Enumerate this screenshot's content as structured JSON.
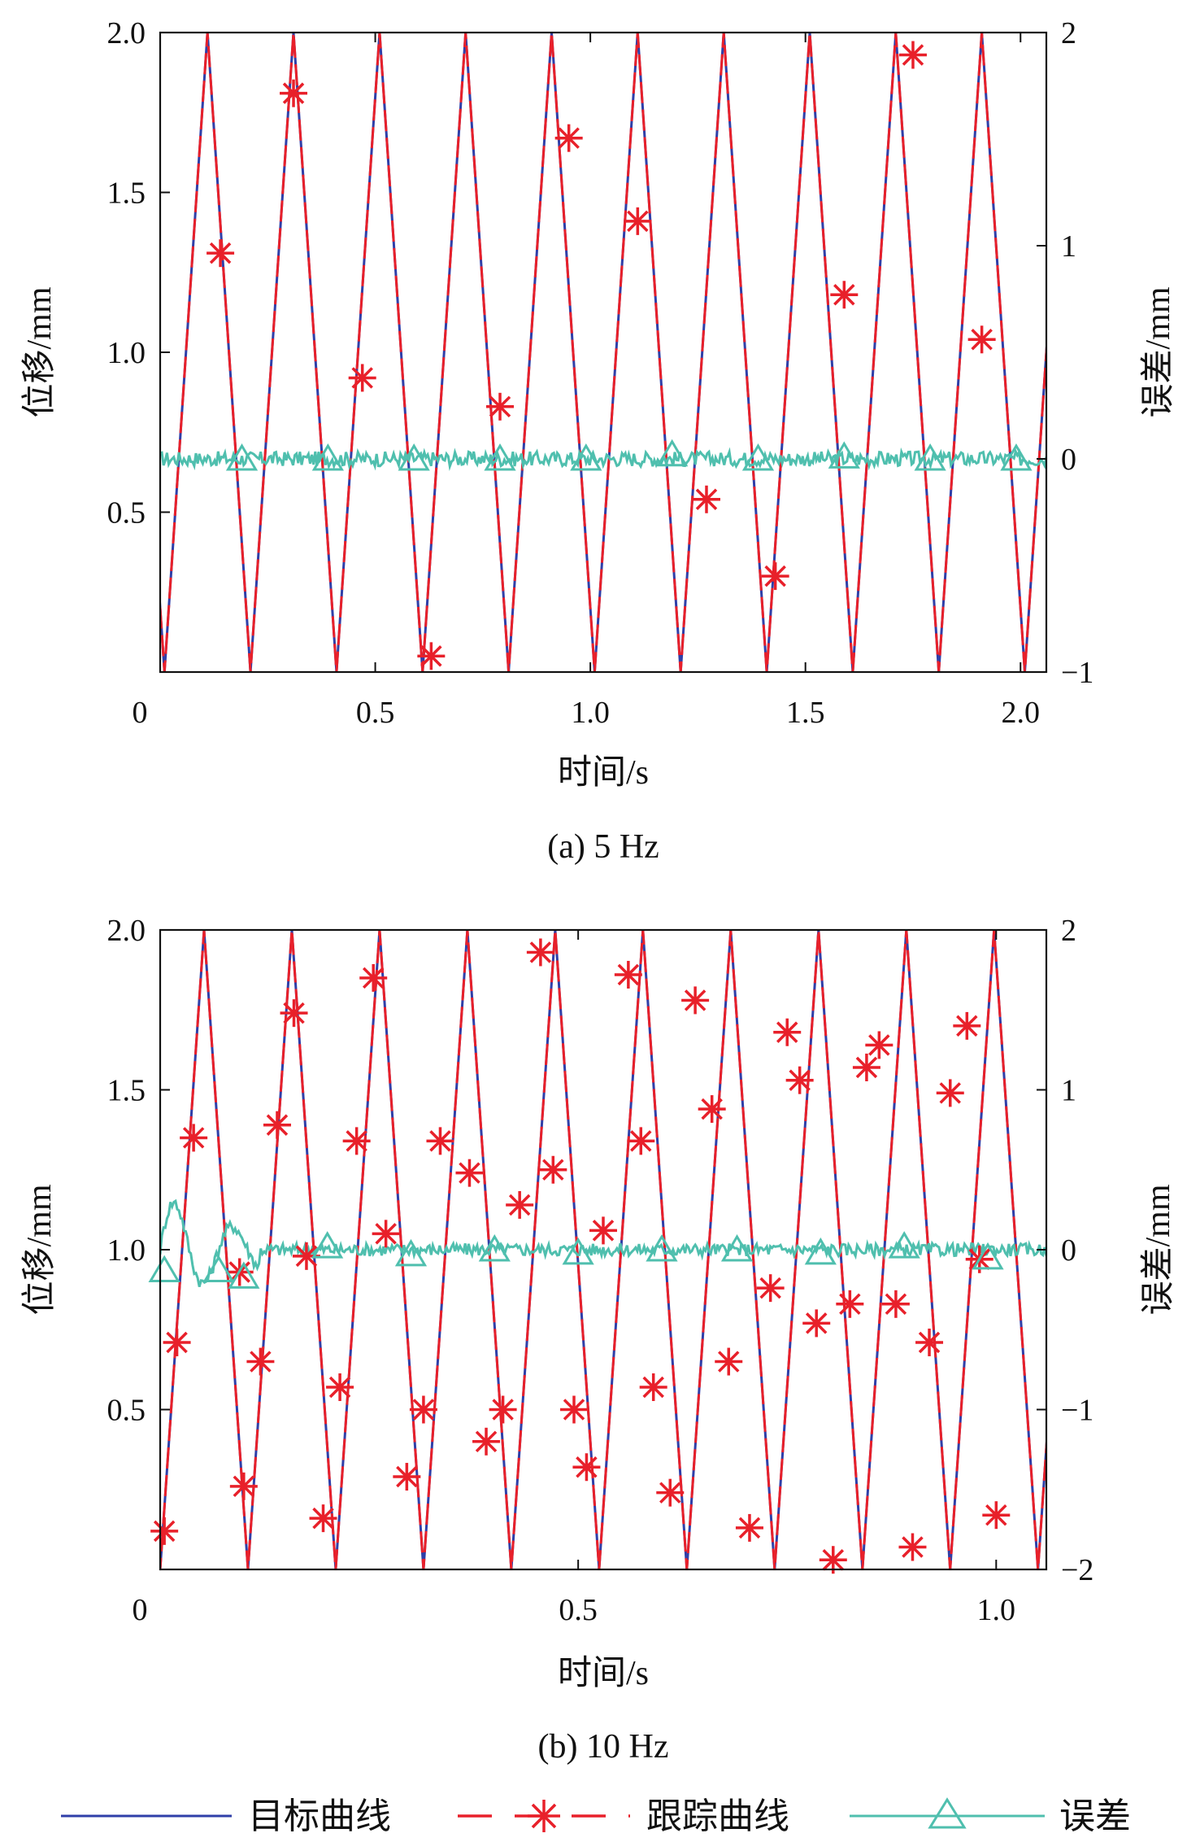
{
  "colors": {
    "target": "#2f3fa8",
    "tracking": "#e8202a",
    "error": "#4fbfae",
    "axis": "#111111"
  },
  "legend": {
    "target_label": "目标曲线",
    "tracking_label": "跟踪曲线",
    "error_label": "误差"
  },
  "chart_data": [
    {
      "type": "line",
      "caption": "(a) 5 Hz",
      "xlabel": "时间/s",
      "ylabel_left": "位移/mm",
      "ylabel_right": "误差/mm",
      "xlim": [
        0,
        2.06
      ],
      "ylim_left": [
        0,
        2.0
      ],
      "ylim_right": [
        -1,
        2
      ],
      "xticks": [
        0,
        0.5,
        1.0,
        1.5,
        2.0
      ],
      "xtick_labels": [
        "0",
        "0.5",
        "1.0",
        "1.5",
        "2.0"
      ],
      "yticks_left": [
        0.5,
        1.0,
        1.5,
        2.0
      ],
      "ytick_labels_left": [
        "0.5",
        "1.0",
        "1.5",
        "2.0"
      ],
      "yticks_right": [
        -1,
        0,
        1,
        2
      ],
      "ytick_labels_right": [
        "−1",
        "0",
        "1",
        "2"
      ],
      "series": [
        {
          "name": "目标曲线",
          "kind": "triangle",
          "period": 0.2,
          "phase": 0.01,
          "min": 0,
          "max": 2.0
        },
        {
          "name": "跟踪曲线",
          "kind": "triangle",
          "period": 0.2,
          "phase": 0.01,
          "min": 0,
          "max": 2.0,
          "markers": [
            {
              "x": 0.14,
              "y": 1.31
            },
            {
              "x": 0.31,
              "y": 1.81
            },
            {
              "x": 0.47,
              "y": 0.92
            },
            {
              "x": 0.63,
              "y": 0.05
            },
            {
              "x": 0.79,
              "y": 0.83
            },
            {
              "x": 0.95,
              "y": 1.67
            },
            {
              "x": 1.11,
              "y": 1.41
            },
            {
              "x": 1.27,
              "y": 0.54
            },
            {
              "x": 1.43,
              "y": 0.3
            },
            {
              "x": 1.59,
              "y": 1.18
            },
            {
              "x": 1.75,
              "y": 1.93
            },
            {
              "x": 1.91,
              "y": 1.04
            }
          ]
        },
        {
          "name": "误差",
          "kind": "noise",
          "base": 0,
          "amplitude": 0.035,
          "markers": [
            {
              "x": 0.19,
              "y": 0.0
            },
            {
              "x": 0.39,
              "y": 0.0
            },
            {
              "x": 0.59,
              "y": 0.0
            },
            {
              "x": 0.79,
              "y": 0.0
            },
            {
              "x": 0.99,
              "y": 0.0
            },
            {
              "x": 1.19,
              "y": 0.02
            },
            {
              "x": 1.39,
              "y": 0.0
            },
            {
              "x": 1.59,
              "y": 0.01
            },
            {
              "x": 1.79,
              "y": 0.0
            },
            {
              "x": 1.99,
              "y": 0.0
            }
          ]
        }
      ]
    },
    {
      "type": "line",
      "caption": "(b) 10 Hz",
      "xlabel": "时间/s",
      "ylabel_left": "位移/mm",
      "ylabel_right": "误差/mm",
      "xlim": [
        0,
        1.06
      ],
      "ylim_left": [
        0,
        2.0
      ],
      "ylim_right": [
        -2,
        2
      ],
      "xticks": [
        0,
        0.5,
        1.0
      ],
      "xtick_labels": [
        "0",
        "0.5",
        "1.0"
      ],
      "yticks_left": [
        0.5,
        1.0,
        1.5,
        2.0
      ],
      "ytick_labels_left": [
        "0.5",
        "1.0",
        "1.5",
        "2.0"
      ],
      "yticks_right": [
        -2,
        -1,
        0,
        1,
        2
      ],
      "ytick_labels_right": [
        "−2",
        "−1",
        "0",
        "1",
        "2"
      ],
      "series": [
        {
          "name": "目标曲线",
          "kind": "triangle",
          "period": 0.105,
          "phase": 0.0,
          "min": 0,
          "max": 2.0
        },
        {
          "name": "跟踪曲线",
          "kind": "triangle",
          "period": 0.105,
          "phase": 0.0,
          "min": 0,
          "max": 2.0,
          "markers": [
            {
              "x": 0.005,
              "y": 0.12
            },
            {
              "x": 0.02,
              "y": 0.71
            },
            {
              "x": 0.04,
              "y": 1.35
            },
            {
              "x": 0.095,
              "y": 0.93
            },
            {
              "x": 0.1,
              "y": 0.26
            },
            {
              "x": 0.12,
              "y": 0.65
            },
            {
              "x": 0.14,
              "y": 1.39
            },
            {
              "x": 0.16,
              "y": 1.74
            },
            {
              "x": 0.175,
              "y": 0.98
            },
            {
              "x": 0.195,
              "y": 0.16
            },
            {
              "x": 0.215,
              "y": 0.57
            },
            {
              "x": 0.235,
              "y": 1.34
            },
            {
              "x": 0.255,
              "y": 1.85
            },
            {
              "x": 0.27,
              "y": 1.05
            },
            {
              "x": 0.295,
              "y": 0.29
            },
            {
              "x": 0.315,
              "y": 0.5
            },
            {
              "x": 0.335,
              "y": 1.34
            },
            {
              "x": 0.37,
              "y": 1.24
            },
            {
              "x": 0.39,
              "y": 0.4
            },
            {
              "x": 0.41,
              "y": 0.5
            },
            {
              "x": 0.43,
              "y": 1.14
            },
            {
              "x": 0.455,
              "y": 1.93
            },
            {
              "x": 0.47,
              "y": 1.25
            },
            {
              "x": 0.495,
              "y": 0.5
            },
            {
              "x": 0.51,
              "y": 0.32
            },
            {
              "x": 0.53,
              "y": 1.06
            },
            {
              "x": 0.56,
              "y": 1.86
            },
            {
              "x": 0.575,
              "y": 1.34
            },
            {
              "x": 0.59,
              "y": 0.57
            },
            {
              "x": 0.61,
              "y": 0.24
            },
            {
              "x": 0.64,
              "y": 1.78
            },
            {
              "x": 0.66,
              "y": 1.44
            },
            {
              "x": 0.68,
              "y": 0.65
            },
            {
              "x": 0.705,
              "y": 0.13
            },
            {
              "x": 0.73,
              "y": 0.88
            },
            {
              "x": 0.75,
              "y": 1.68
            },
            {
              "x": 0.765,
              "y": 1.53
            },
            {
              "x": 0.785,
              "y": 0.77
            },
            {
              "x": 0.805,
              "y": 0.03
            },
            {
              "x": 0.825,
              "y": 0.83
            },
            {
              "x": 0.845,
              "y": 1.57
            },
            {
              "x": 0.86,
              "y": 1.64
            },
            {
              "x": 0.88,
              "y": 0.83
            },
            {
              "x": 0.9,
              "y": 0.07
            },
            {
              "x": 0.92,
              "y": 0.71
            },
            {
              "x": 0.945,
              "y": 1.49
            },
            {
              "x": 0.965,
              "y": 1.7
            },
            {
              "x": 0.98,
              "y": 0.97
            },
            {
              "x": 1.0,
              "y": 0.17
            }
          ]
        },
        {
          "name": "误差",
          "kind": "noise",
          "base": 0,
          "amplitude": 0.04,
          "markers": [
            {
              "x": 0.005,
              "y": -0.13
            },
            {
              "x": 0.07,
              "y": -0.13
            },
            {
              "x": 0.1,
              "y": -0.17
            },
            {
              "x": 0.2,
              "y": 0.02
            },
            {
              "x": 0.3,
              "y": -0.03
            },
            {
              "x": 0.4,
              "y": 0.0
            },
            {
              "x": 0.5,
              "y": -0.02
            },
            {
              "x": 0.6,
              "y": 0.0
            },
            {
              "x": 0.69,
              "y": 0.0
            },
            {
              "x": 0.79,
              "y": -0.02
            },
            {
              "x": 0.89,
              "y": 0.02
            },
            {
              "x": 0.99,
              "y": -0.05
            }
          ]
        }
      ]
    }
  ]
}
